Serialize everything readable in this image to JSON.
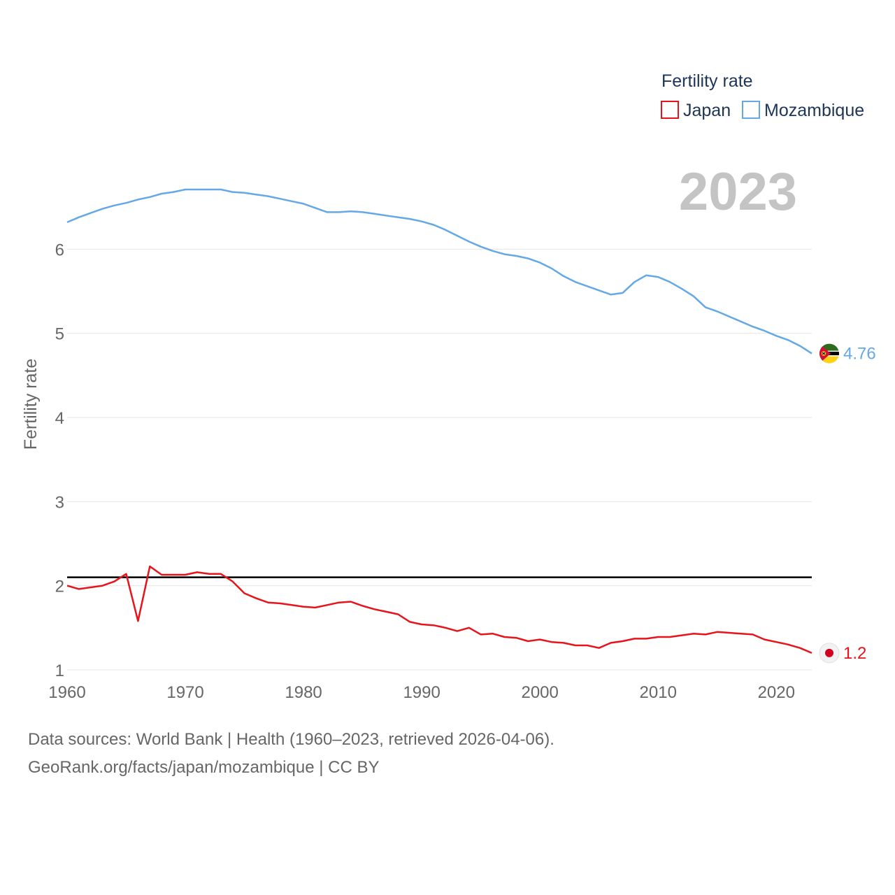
{
  "chart_data": {
    "type": "line",
    "title": "Fertility rate",
    "year_label": "2023",
    "xlabel": "",
    "ylabel": "Fertility rate",
    "xlim": [
      1960,
      2023
    ],
    "ylim": [
      0.8,
      7.2
    ],
    "x_ticks": [
      1960,
      1970,
      1980,
      1990,
      2000,
      2010,
      2020
    ],
    "y_ticks": [
      1,
      2,
      3,
      4,
      5,
      6
    ],
    "reference_line": 2.1,
    "x": [
      1960,
      1961,
      1962,
      1963,
      1964,
      1965,
      1966,
      1967,
      1968,
      1969,
      1970,
      1971,
      1972,
      1973,
      1974,
      1975,
      1976,
      1977,
      1978,
      1979,
      1980,
      1981,
      1982,
      1983,
      1984,
      1985,
      1986,
      1987,
      1988,
      1989,
      1990,
      1991,
      1992,
      1993,
      1994,
      1995,
      1996,
      1997,
      1998,
      1999,
      2000,
      2001,
      2002,
      2003,
      2004,
      2005,
      2006,
      2007,
      2008,
      2009,
      2010,
      2011,
      2012,
      2013,
      2014,
      2015,
      2016,
      2017,
      2018,
      2019,
      2020,
      2021,
      2022,
      2023
    ],
    "series": [
      {
        "name": "Japan",
        "color": "#e8141c",
        "end_label": "1.2",
        "flag": "japan-flag-icon",
        "values": [
          2.0,
          1.96,
          1.98,
          2.0,
          2.05,
          2.14,
          1.58,
          2.23,
          2.13,
          2.13,
          2.13,
          2.16,
          2.14,
          2.14,
          2.05,
          1.91,
          1.85,
          1.8,
          1.79,
          1.77,
          1.75,
          1.74,
          1.77,
          1.8,
          1.81,
          1.76,
          1.72,
          1.69,
          1.66,
          1.57,
          1.54,
          1.53,
          1.5,
          1.46,
          1.5,
          1.42,
          1.43,
          1.39,
          1.38,
          1.34,
          1.36,
          1.33,
          1.32,
          1.29,
          1.29,
          1.26,
          1.32,
          1.34,
          1.37,
          1.37,
          1.39,
          1.39,
          1.41,
          1.43,
          1.42,
          1.45,
          1.44,
          1.43,
          1.42,
          1.36,
          1.33,
          1.3,
          1.26,
          1.2
        ]
      },
      {
        "name": "Mozambique",
        "color": "#64a8e6",
        "end_label": "4.76",
        "flag": "mozambique-flag-icon",
        "values": [
          6.32,
          6.38,
          6.43,
          6.48,
          6.52,
          6.55,
          6.59,
          6.62,
          6.66,
          6.68,
          6.71,
          6.71,
          6.71,
          6.71,
          6.68,
          6.67,
          6.65,
          6.63,
          6.6,
          6.57,
          6.54,
          6.49,
          6.44,
          6.44,
          6.45,
          6.44,
          6.42,
          6.4,
          6.38,
          6.36,
          6.33,
          6.29,
          6.23,
          6.16,
          6.09,
          6.03,
          5.98,
          5.94,
          5.92,
          5.89,
          5.84,
          5.77,
          5.68,
          5.61,
          5.56,
          5.51,
          5.46,
          5.48,
          5.61,
          5.69,
          5.67,
          5.61,
          5.53,
          5.44,
          5.31,
          5.26,
          5.2,
          5.14,
          5.08,
          5.03,
          4.97,
          4.92,
          4.85,
          4.76
        ]
      }
    ]
  },
  "source_line_1": "Data sources: World Bank | Health (1960–2023, retrieved 2026-04-06).",
  "source_line_2": "GeoRank.org/facts/japan/mozambique | CC BY"
}
